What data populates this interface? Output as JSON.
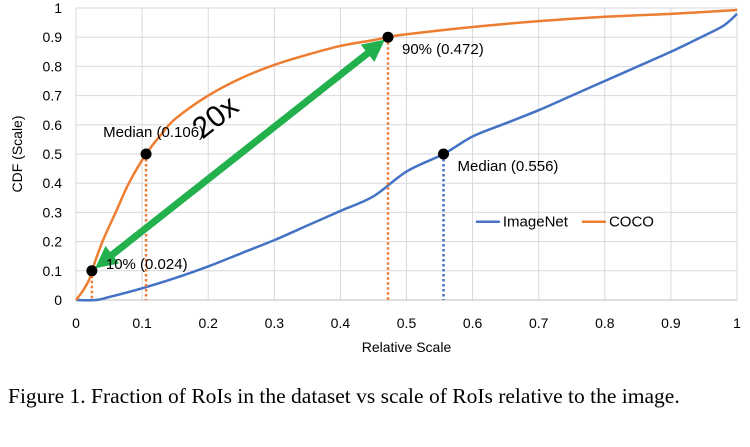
{
  "chart_data": {
    "type": "line",
    "xlabel": "Relative Scale",
    "ylabel": "CDF (Scale)",
    "xlim": [
      0,
      1
    ],
    "ylim": [
      0,
      1
    ],
    "x_ticks": [
      0,
      0.1,
      0.2,
      0.3,
      0.4,
      0.5,
      0.6,
      0.7,
      0.8,
      0.9,
      1
    ],
    "y_ticks": [
      0,
      0.1,
      0.2,
      0.3,
      0.4,
      0.5,
      0.6,
      0.7,
      0.8,
      0.9,
      1
    ],
    "x_tick_labels": [
      "0",
      "0.1",
      "0.2",
      "0.3",
      "0.4",
      "0.5",
      "0.6",
      "0.7",
      "0.8",
      "0.9",
      "1"
    ],
    "y_tick_labels": [
      "0",
      "0.1",
      "0.2",
      "0.3",
      "0.4",
      "0.5",
      "0.6",
      "0.7",
      "0.8",
      "0.9",
      "1"
    ],
    "grid": true,
    "legend_position": "right",
    "series": [
      {
        "name": "ImageNet",
        "color": "#4472C4",
        "x": [
          0,
          0.03,
          0.05,
          0.1,
          0.15,
          0.2,
          0.25,
          0.3,
          0.35,
          0.4,
          0.45,
          0.5,
          0.556,
          0.6,
          0.65,
          0.7,
          0.75,
          0.8,
          0.85,
          0.9,
          0.95,
          0.98,
          1.0
        ],
        "y": [
          0,
          0.0,
          0.01,
          0.04,
          0.075,
          0.115,
          0.16,
          0.205,
          0.255,
          0.305,
          0.355,
          0.44,
          0.5,
          0.56,
          0.605,
          0.65,
          0.7,
          0.75,
          0.8,
          0.85,
          0.905,
          0.94,
          0.98
        ]
      },
      {
        "name": "COCO",
        "color": "#ED7D31",
        "x": [
          0,
          0.01,
          0.02,
          0.024,
          0.04,
          0.06,
          0.08,
          0.106,
          0.13,
          0.15,
          0.2,
          0.25,
          0.3,
          0.35,
          0.4,
          0.45,
          0.472,
          0.5,
          0.6,
          0.7,
          0.8,
          0.9,
          1.0
        ],
        "y": [
          0,
          0.03,
          0.07,
          0.1,
          0.2,
          0.3,
          0.4,
          0.5,
          0.57,
          0.62,
          0.7,
          0.76,
          0.805,
          0.84,
          0.87,
          0.89,
          0.9,
          0.91,
          0.935,
          0.955,
          0.97,
          0.98,
          0.993
        ]
      }
    ],
    "markers": [
      {
        "label": "Median (0.106)",
        "x": 0.106,
        "y": 0.5,
        "color": "#ED7D31",
        "label_side": "left"
      },
      {
        "label": "10% (0.024)",
        "x": 0.024,
        "y": 0.1,
        "color": "#ED7D31",
        "label_side": "right"
      },
      {
        "label": "90% (0.472)",
        "x": 0.472,
        "y": 0.9,
        "color": "#ED7D31",
        "label_side": "right"
      },
      {
        "label": "Median (0.556)",
        "x": 0.556,
        "y": 0.5,
        "color": "#4472C4",
        "label_side": "right"
      }
    ],
    "arrow": {
      "from": [
        0.024,
        0.1
      ],
      "to": [
        0.472,
        0.9
      ],
      "label": "20x",
      "color": "#22B14C"
    }
  },
  "caption": "Figure 1. Fraction of RoIs in the dataset vs scale of RoIs relative to the image."
}
